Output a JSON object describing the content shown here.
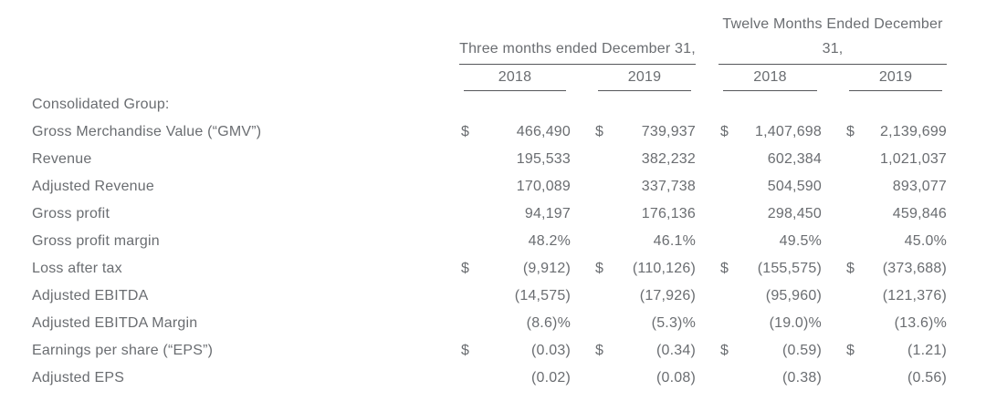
{
  "page": {
    "background": "#ffffff",
    "text_color": "#6a6d71",
    "rule_color": "#55575a"
  },
  "table": {
    "period_groups": [
      {
        "line1": "",
        "line2": "Three months ended December 31,"
      },
      {
        "line1": "Twelve Months Ended December",
        "line2": "31,"
      }
    ],
    "year_headers": [
      "2018",
      "2019",
      "2018",
      "2019"
    ],
    "rows": [
      {
        "label": "Consolidated Group:",
        "currency": [
          "",
          "",
          "",
          ""
        ],
        "values": [
          "",
          "",
          "",
          ""
        ]
      },
      {
        "label": "Gross Merchandise Value (“GMV”)",
        "currency": [
          "$",
          "$",
          "$",
          "$"
        ],
        "values": [
          "466,490",
          "739,937",
          "1,407,698",
          "2,139,699"
        ]
      },
      {
        "label": "Revenue",
        "currency": [
          "",
          "",
          "",
          ""
        ],
        "values": [
          "195,533",
          "382,232",
          "602,384",
          "1,021,037"
        ]
      },
      {
        "label": "Adjusted Revenue",
        "currency": [
          "",
          "",
          "",
          ""
        ],
        "values": [
          "170,089",
          "337,738",
          "504,590",
          "893,077"
        ]
      },
      {
        "label": "Gross profit",
        "currency": [
          "",
          "",
          "",
          ""
        ],
        "values": [
          "94,197",
          "176,136",
          "298,450",
          "459,846"
        ]
      },
      {
        "label": "Gross profit margin",
        "currency": [
          "",
          "",
          "",
          ""
        ],
        "values": [
          "48.2%",
          "46.1%",
          "49.5%",
          "45.0%"
        ]
      },
      {
        "label": "Loss after tax",
        "currency": [
          "$",
          "$",
          "$",
          "$"
        ],
        "values": [
          "(9,912)",
          "(110,126)",
          "(155,575)",
          "(373,688)"
        ]
      },
      {
        "label": "Adjusted EBITDA",
        "currency": [
          "",
          "",
          "",
          ""
        ],
        "values": [
          "(14,575)",
          "(17,926)",
          "(95,960)",
          "(121,376)"
        ]
      },
      {
        "label": "Adjusted EBITDA Margin",
        "currency": [
          "",
          "",
          "",
          ""
        ],
        "values": [
          "(8.6)%",
          "(5.3)%",
          "(19.0)%",
          "(13.6)%"
        ]
      },
      {
        "label": "Earnings per share (“EPS”)",
        "currency": [
          "$",
          "$",
          "$",
          "$"
        ],
        "values": [
          "(0.03)",
          "(0.34)",
          "(0.59)",
          "(1.21)"
        ]
      },
      {
        "label": "Adjusted EPS",
        "currency": [
          "",
          "",
          "",
          ""
        ],
        "values": [
          "(0.02)",
          "(0.08)",
          "(0.38)",
          "(0.56)"
        ]
      }
    ]
  }
}
